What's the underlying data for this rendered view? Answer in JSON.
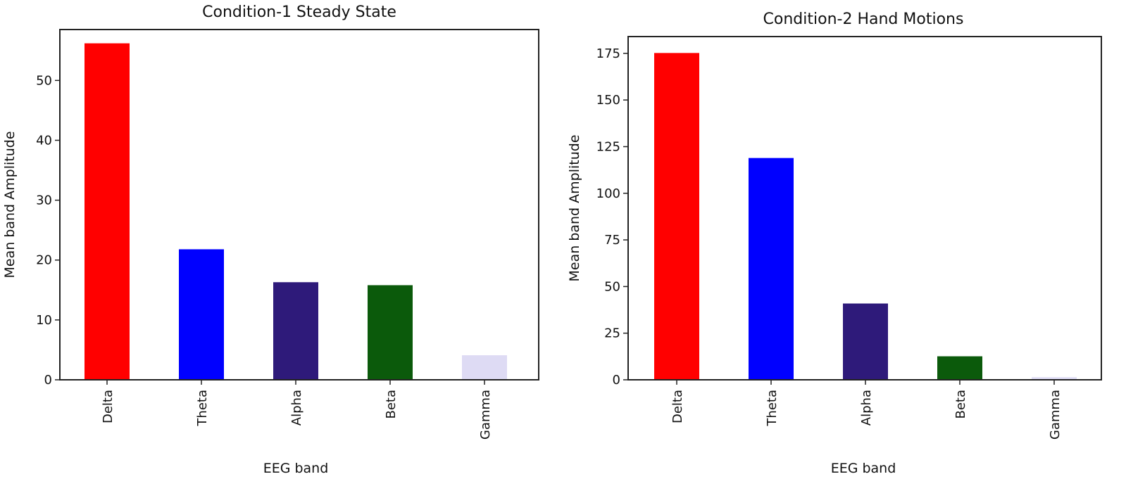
{
  "chart_data": [
    {
      "type": "bar",
      "title": "Condition-1 Steady State",
      "xlabel": "EEG band",
      "ylabel": "Mean band Amplitude",
      "categories": [
        "Delta",
        "Theta",
        "Alpha",
        "Beta",
        "Gamma"
      ],
      "values": [
        56.2,
        21.8,
        16.3,
        15.8,
        4.1
      ],
      "colors": [
        "#ff0000",
        "#0000ff",
        "#2e1a7a",
        "#0b5a0b",
        "#dedbf4"
      ],
      "ylim": [
        0,
        58.5
      ],
      "yticks": [
        0,
        10,
        20,
        30,
        40,
        50
      ],
      "grid": false
    },
    {
      "type": "bar",
      "title": "Condition-2 Hand Motions",
      "xlabel": "EEG band",
      "ylabel": "Mean band Amplitude",
      "categories": [
        "Delta",
        "Theta",
        "Alpha",
        "Beta",
        "Gamma"
      ],
      "values": [
        175.2,
        118.9,
        40.9,
        12.6,
        1.4
      ],
      "colors": [
        "#ff0000",
        "#0000ff",
        "#2e1a7a",
        "#0b5a0b",
        "#dedbf4"
      ],
      "ylim": [
        0,
        184
      ],
      "yticks": [
        0,
        25,
        50,
        75,
        100,
        125,
        150,
        175
      ],
      "grid": false
    }
  ]
}
